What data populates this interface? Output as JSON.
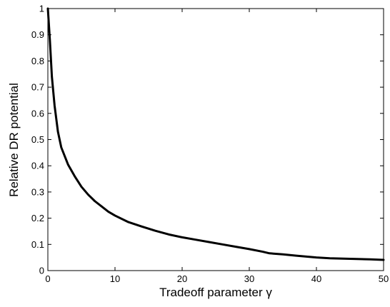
{
  "chart_data": {
    "type": "line",
    "xlabel": "Tradeoff parameter γ",
    "ylabel": "Relative DR potential",
    "xlim": [
      0,
      50
    ],
    "ylim": [
      0,
      1
    ],
    "x_ticks": [
      0,
      10,
      20,
      30,
      40,
      50
    ],
    "y_ticks": [
      0,
      0.1,
      0.2,
      0.3,
      0.4,
      0.5,
      0.6,
      0.7,
      0.8,
      0.9,
      1
    ],
    "x_tick_labels": [
      "0",
      "10",
      "20",
      "30",
      "40",
      "50"
    ],
    "y_tick_labels": [
      "0",
      "0.1",
      "0.2",
      "0.3",
      "0.4",
      "0.5",
      "0.6",
      "0.7",
      "0.8",
      "0.9",
      "1"
    ],
    "grid": false,
    "series": [
      {
        "x": [
          0,
          0.3,
          0.6,
          1,
          1.5,
          2,
          3,
          4,
          5,
          6,
          7,
          8,
          9,
          10,
          12,
          14,
          16,
          18,
          20,
          22,
          24,
          26,
          28,
          30,
          32,
          33,
          35,
          37,
          40,
          42,
          45,
          48,
          50
        ],
        "y": [
          1.0,
          0.88,
          0.74,
          0.63,
          0.53,
          0.47,
          0.405,
          0.36,
          0.32,
          0.29,
          0.265,
          0.245,
          0.225,
          0.21,
          0.185,
          0.168,
          0.152,
          0.138,
          0.127,
          0.118,
          0.109,
          0.1,
          0.091,
          0.082,
          0.072,
          0.066,
          0.062,
          0.057,
          0.05,
          0.047,
          0.045,
          0.043,
          0.041
        ]
      }
    ]
  }
}
